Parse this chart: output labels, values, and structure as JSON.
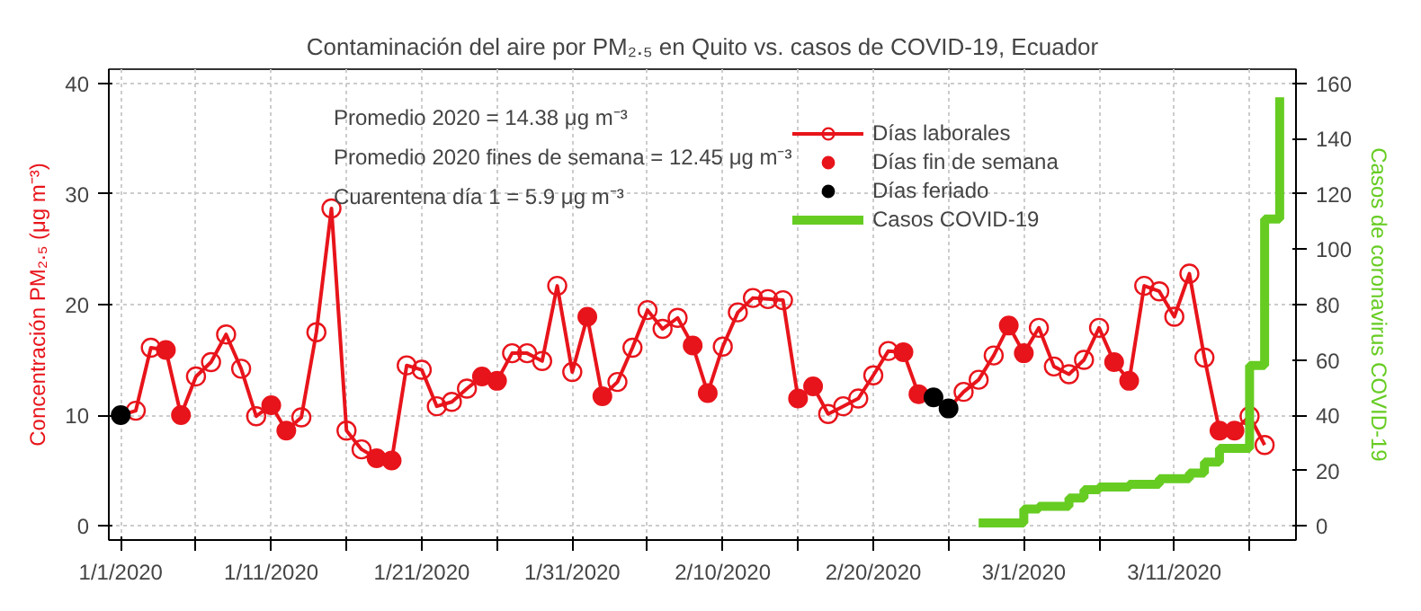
{
  "chart_data": {
    "type": "line",
    "title": "Contaminación del aire por PM₂.₅ en Quito vs. casos de COVID-19, Ecuador",
    "ylabel": "Concentración PM₂.₅ (μg m⁻³)",
    "y2label": "Casos de coronavirus COVID-19",
    "annotations": [
      "Promedio 2020 = 14.38 μg m⁻³",
      "Promedio 2020 fines de semana = 12.45 μg m⁻³",
      "Cuarentena día 1 = 5.9 μg m⁻³"
    ],
    "x": [
      "2020-01-01",
      "2020-01-02",
      "2020-01-03",
      "2020-01-04",
      "2020-01-05",
      "2020-01-06",
      "2020-01-07",
      "2020-01-08",
      "2020-01-09",
      "2020-01-10",
      "2020-01-11",
      "2020-01-12",
      "2020-01-13",
      "2020-01-14",
      "2020-01-15",
      "2020-01-16",
      "2020-01-17",
      "2020-01-18",
      "2020-01-19",
      "2020-01-20",
      "2020-01-21",
      "2020-01-22",
      "2020-01-23",
      "2020-01-24",
      "2020-01-25",
      "2020-01-26",
      "2020-01-27",
      "2020-01-28",
      "2020-01-29",
      "2020-01-30",
      "2020-01-31",
      "2020-02-01",
      "2020-02-02",
      "2020-02-03",
      "2020-02-04",
      "2020-02-05",
      "2020-02-06",
      "2020-02-07",
      "2020-02-08",
      "2020-02-09",
      "2020-02-10",
      "2020-02-11",
      "2020-02-12",
      "2020-02-13",
      "2020-02-14",
      "2020-02-15",
      "2020-02-16",
      "2020-02-17",
      "2020-02-18",
      "2020-02-19",
      "2020-02-20",
      "2020-02-21",
      "2020-02-22",
      "2020-02-23",
      "2020-02-24",
      "2020-02-25",
      "2020-02-26",
      "2020-02-27",
      "2020-02-28",
      "2020-02-29",
      "2020-03-01",
      "2020-03-02",
      "2020-03-03",
      "2020-03-04",
      "2020-03-05",
      "2020-03-06",
      "2020-03-07",
      "2020-03-08",
      "2020-03-09",
      "2020-03-10",
      "2020-03-11",
      "2020-03-12",
      "2020-03-13",
      "2020-03-14",
      "2020-03-15",
      "2020-03-16",
      "2020-03-17"
    ],
    "series": [
      {
        "name": "Días laborales",
        "color": "#e8141b",
        "marker": "circle",
        "values": [
          10.0,
          10.4,
          16.1,
          15.9,
          10.0,
          13.5,
          14.8,
          17.3,
          14.2,
          9.9,
          10.9,
          8.6,
          9.8,
          17.5,
          28.7,
          8.6,
          6.9,
          6.1,
          5.9,
          14.5,
          14.1,
          10.8,
          11.2,
          12.4,
          13.5,
          13.1,
          15.6,
          15.6,
          14.9,
          21.7,
          13.9,
          18.9,
          11.7,
          13.0,
          16.1,
          19.5,
          17.8,
          18.8,
          16.3,
          12.0,
          16.2,
          19.3,
          20.6,
          20.5,
          20.4,
          11.5,
          12.6,
          10.1,
          10.8,
          11.5,
          13.6,
          15.8,
          15.7,
          11.9,
          11.6,
          10.6,
          12.1,
          13.2,
          15.4,
          18.1,
          15.6,
          17.9,
          14.4,
          13.7,
          15.0,
          17.9,
          14.8,
          13.1,
          21.7,
          21.2,
          18.9,
          22.8,
          15.2,
          8.6,
          8.6,
          9.9,
          7.3
        ]
      },
      {
        "name": "Días fin de semana",
        "type": "scatter",
        "color": "#e8141b",
        "marker": "circle",
        "values": [
          null,
          null,
          null,
          15.9,
          10.0,
          null,
          null,
          null,
          null,
          null,
          10.9,
          8.6,
          null,
          null,
          null,
          null,
          null,
          6.1,
          5.9,
          null,
          null,
          null,
          null,
          null,
          13.5,
          13.1,
          null,
          null,
          null,
          null,
          null,
          18.9,
          11.7,
          null,
          null,
          null,
          null,
          null,
          16.3,
          12.0,
          null,
          null,
          null,
          null,
          null,
          11.5,
          12.6,
          null,
          null,
          null,
          null,
          null,
          15.7,
          11.9,
          null,
          null,
          null,
          null,
          null,
          18.1,
          15.6,
          null,
          null,
          null,
          null,
          null,
          14.8,
          13.1,
          null,
          null,
          null,
          null,
          null,
          8.6,
          8.6,
          null,
          null
        ]
      },
      {
        "name": "Días feriado",
        "type": "scatter",
        "color": "#000000",
        "marker": "circle",
        "values": [
          10.0,
          null,
          null,
          null,
          null,
          null,
          null,
          null,
          null,
          null,
          null,
          null,
          null,
          null,
          null,
          null,
          null,
          null,
          null,
          null,
          null,
          null,
          null,
          null,
          null,
          null,
          null,
          null,
          null,
          null,
          null,
          null,
          null,
          null,
          null,
          null,
          null,
          null,
          null,
          null,
          null,
          null,
          null,
          null,
          null,
          null,
          null,
          null,
          null,
          null,
          null,
          null,
          null,
          null,
          11.6,
          10.6,
          null,
          null,
          null,
          null,
          null,
          null,
          null,
          null,
          null,
          null,
          null,
          null,
          null,
          null,
          null,
          null,
          null,
          null,
          null,
          null,
          null
        ]
      },
      {
        "name": "Casos COVID-19",
        "type": "step",
        "axis": "y2",
        "color": "#66cc22",
        "x": [
          "2020-02-27",
          "2020-03-01",
          "2020-03-02",
          "2020-03-04",
          "2020-03-05",
          "2020-03-06",
          "2020-03-08",
          "2020-03-10",
          "2020-03-12",
          "2020-03-13",
          "2020-03-14",
          "2020-03-16",
          "2020-03-17",
          "2020-03-18"
        ],
        "values": [
          1,
          6,
          7,
          10,
          13,
          14,
          15,
          17,
          19,
          23,
          28,
          58,
          111,
          155
        ]
      }
    ],
    "xlim": [
      "2019-12-31T05:00",
      "2020-03-19T02:00"
    ],
    "xticks": [
      {
        "value": "2020-01-01",
        "label": "1/1/2020"
      },
      {
        "value": "2020-01-06",
        "label": null
      },
      {
        "value": "2020-01-11",
        "label": "1/11/2020"
      },
      {
        "value": "2020-01-16",
        "label": null
      },
      {
        "value": "2020-01-21",
        "label": "1/21/2020"
      },
      {
        "value": "2020-01-26",
        "label": null
      },
      {
        "value": "2020-01-31",
        "label": "1/31/2020"
      },
      {
        "value": "2020-02-05",
        "label": null
      },
      {
        "value": "2020-02-10",
        "label": "2/10/2020"
      },
      {
        "value": "2020-02-15",
        "label": null
      },
      {
        "value": "2020-02-20",
        "label": "2/20/2020"
      },
      {
        "value": "2020-02-25",
        "label": null
      },
      {
        "value": "2020-03-01",
        "label": "3/1/2020"
      },
      {
        "value": "2020-03-06",
        "label": null
      },
      {
        "value": "2020-03-11",
        "label": "3/11/2020"
      },
      {
        "value": "2020-03-16",
        "label": null
      }
    ],
    "ylim": [
      -1.3,
      41.3
    ],
    "yticks": [
      0,
      10,
      20,
      30,
      40
    ],
    "y2lim": [
      -5.2,
      165.2
    ],
    "y2ticks": [
      0,
      20,
      40,
      60,
      80,
      100,
      120,
      140,
      160
    ],
    "grid": true,
    "legend": "top"
  }
}
